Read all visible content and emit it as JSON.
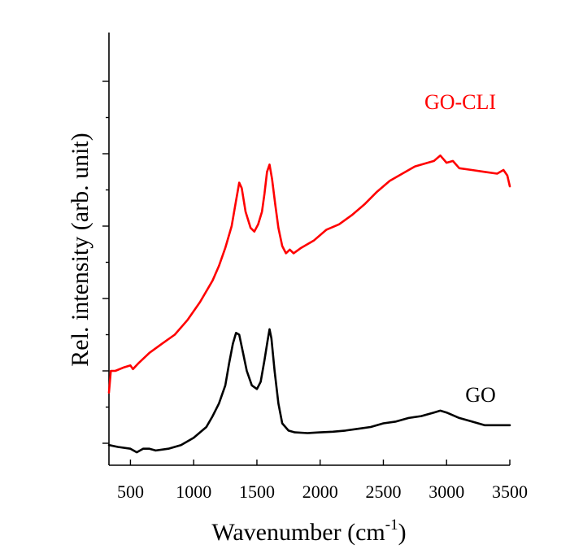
{
  "chart_data": {
    "type": "line",
    "xlabel": "Wavenumber (cm",
    "xlabel_sup": "-1",
    "xlabel_close": ")",
    "ylabel": "Rel. intensity (arb. unit)",
    "xlim": [
      330,
      3500
    ],
    "ylim": [
      0,
      10
    ],
    "x_ticks": [
      500,
      1000,
      1500,
      2000,
      2500,
      3000,
      3500
    ],
    "y_tick_labels_shown": false,
    "grid": false,
    "series": [
      {
        "name": "GO-CLI",
        "color": "#ff0000",
        "x": [
          330,
          345,
          380,
          450,
          500,
          520,
          560,
          650,
          750,
          850,
          950,
          1050,
          1150,
          1200,
          1250,
          1300,
          1330,
          1360,
          1380,
          1410,
          1450,
          1480,
          1510,
          1540,
          1560,
          1580,
          1600,
          1620,
          1645,
          1670,
          1700,
          1730,
          1760,
          1790,
          1850,
          1950,
          2050,
          2150,
          2250,
          2350,
          2450,
          2550,
          2650,
          2750,
          2850,
          2900,
          2950,
          3000,
          3050,
          3100,
          3200,
          3300,
          3400,
          3450,
          3480,
          3500
        ],
        "y": [
          1.4,
          2.0,
          2.0,
          2.1,
          2.15,
          2.05,
          2.2,
          2.5,
          2.75,
          3.0,
          3.4,
          3.9,
          4.5,
          4.9,
          5.4,
          6.0,
          6.6,
          7.2,
          7.05,
          6.4,
          5.95,
          5.85,
          6.05,
          6.4,
          6.9,
          7.5,
          7.7,
          7.3,
          6.6,
          5.95,
          5.45,
          5.25,
          5.35,
          5.25,
          5.4,
          5.6,
          5.9,
          6.05,
          6.3,
          6.6,
          6.95,
          7.25,
          7.45,
          7.65,
          7.75,
          7.8,
          7.95,
          7.75,
          7.8,
          7.6,
          7.55,
          7.5,
          7.45,
          7.55,
          7.4,
          7.1
        ],
        "label": "GO-CLI"
      },
      {
        "name": "GO",
        "color": "#000000",
        "x": [
          330,
          400,
          500,
          550,
          600,
          650,
          700,
          800,
          900,
          1000,
          1100,
          1150,
          1200,
          1250,
          1280,
          1310,
          1335,
          1360,
          1390,
          1420,
          1460,
          1500,
          1530,
          1560,
          1585,
          1600,
          1615,
          1640,
          1670,
          1700,
          1750,
          1800,
          1900,
          2000,
          2100,
          2200,
          2300,
          2400,
          2500,
          2600,
          2700,
          2800,
          2900,
          2950,
          3000,
          3100,
          3200,
          3300,
          3400,
          3500
        ],
        "y": [
          -0.05,
          -0.1,
          -0.15,
          -0.25,
          -0.15,
          -0.15,
          -0.2,
          -0.15,
          -0.05,
          0.15,
          0.45,
          0.75,
          1.1,
          1.6,
          2.2,
          2.75,
          3.05,
          3.0,
          2.5,
          2.0,
          1.6,
          1.5,
          1.7,
          2.3,
          2.85,
          3.15,
          2.9,
          2.0,
          1.1,
          0.55,
          0.35,
          0.3,
          0.28,
          0.3,
          0.32,
          0.35,
          0.4,
          0.45,
          0.55,
          0.6,
          0.7,
          0.75,
          0.85,
          0.9,
          0.85,
          0.7,
          0.6,
          0.5,
          0.5,
          0.5
        ],
        "label": "GO"
      }
    ]
  }
}
